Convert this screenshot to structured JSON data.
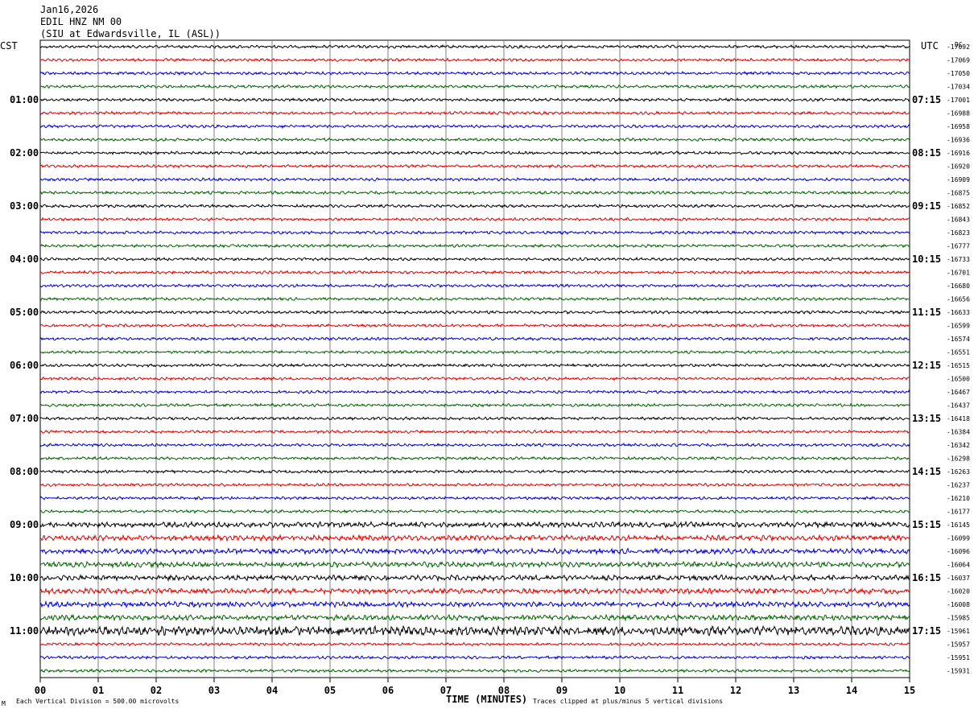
{
  "header": {
    "date": "Jan16,2026",
    "station": "EDIL HNZ NM 00",
    "location": "(SIU at Edwardsville, IL  (ASL))"
  },
  "left_tz": "CST",
  "right_tz": "UTC",
  "dc_header": "DC",
  "footer": {
    "scale_note": "Each Vertical Division =  500.00 microvolts",
    "xlabel": "TIME (MINUTES)",
    "clip_note": "Traces clipped at plus/minus 5 vertical divisions",
    "corner_mark": "M"
  },
  "colors": {
    "cycle": [
      "#000000",
      "#e00000",
      "#0000cc",
      "#006400"
    ],
    "grid": "#808080"
  },
  "chart_data": {
    "type": "line",
    "title": "EDIL HNZ NM 00",
    "xlabel": "TIME (MINUTES)",
    "xlim": [
      0,
      15
    ],
    "x_ticks": [
      "00",
      "01",
      "02",
      "03",
      "04",
      "05",
      "06",
      "07",
      "08",
      "09",
      "10",
      "11",
      "12",
      "13",
      "14",
      "15"
    ],
    "left_labels": [
      "01:00",
      "02:00",
      "03:00",
      "04:00",
      "05:00",
      "06:00",
      "07:00",
      "08:00",
      "09:00",
      "10:00",
      "11:00"
    ],
    "right_labels": [
      "07:15",
      "08:15",
      "09:15",
      "10:15",
      "11:15",
      "12:15",
      "13:15",
      "14:15",
      "15:15",
      "16:15",
      "17:15"
    ],
    "dc_offsets": [
      -17092,
      -17069,
      -17050,
      -17034,
      -17001,
      -16988,
      -16958,
      -16936,
      -16916,
      -16920,
      -16909,
      -16875,
      -16852,
      -16843,
      -16823,
      -16777,
      -16733,
      -16701,
      -16680,
      -16656,
      -16633,
      -16599,
      -16574,
      -16551,
      -16515,
      -16500,
      -16467,
      -16437,
      -16418,
      -16384,
      -16342,
      -16298,
      -16263,
      -16237,
      -16210,
      -16177,
      -16145,
      -16099,
      -16096,
      -16064,
      -16037,
      -16020,
      -16008,
      -15985,
      -15961,
      -15957,
      -15951,
      -15931
    ],
    "series_count": 48,
    "minutes_per_trace": 15
  }
}
